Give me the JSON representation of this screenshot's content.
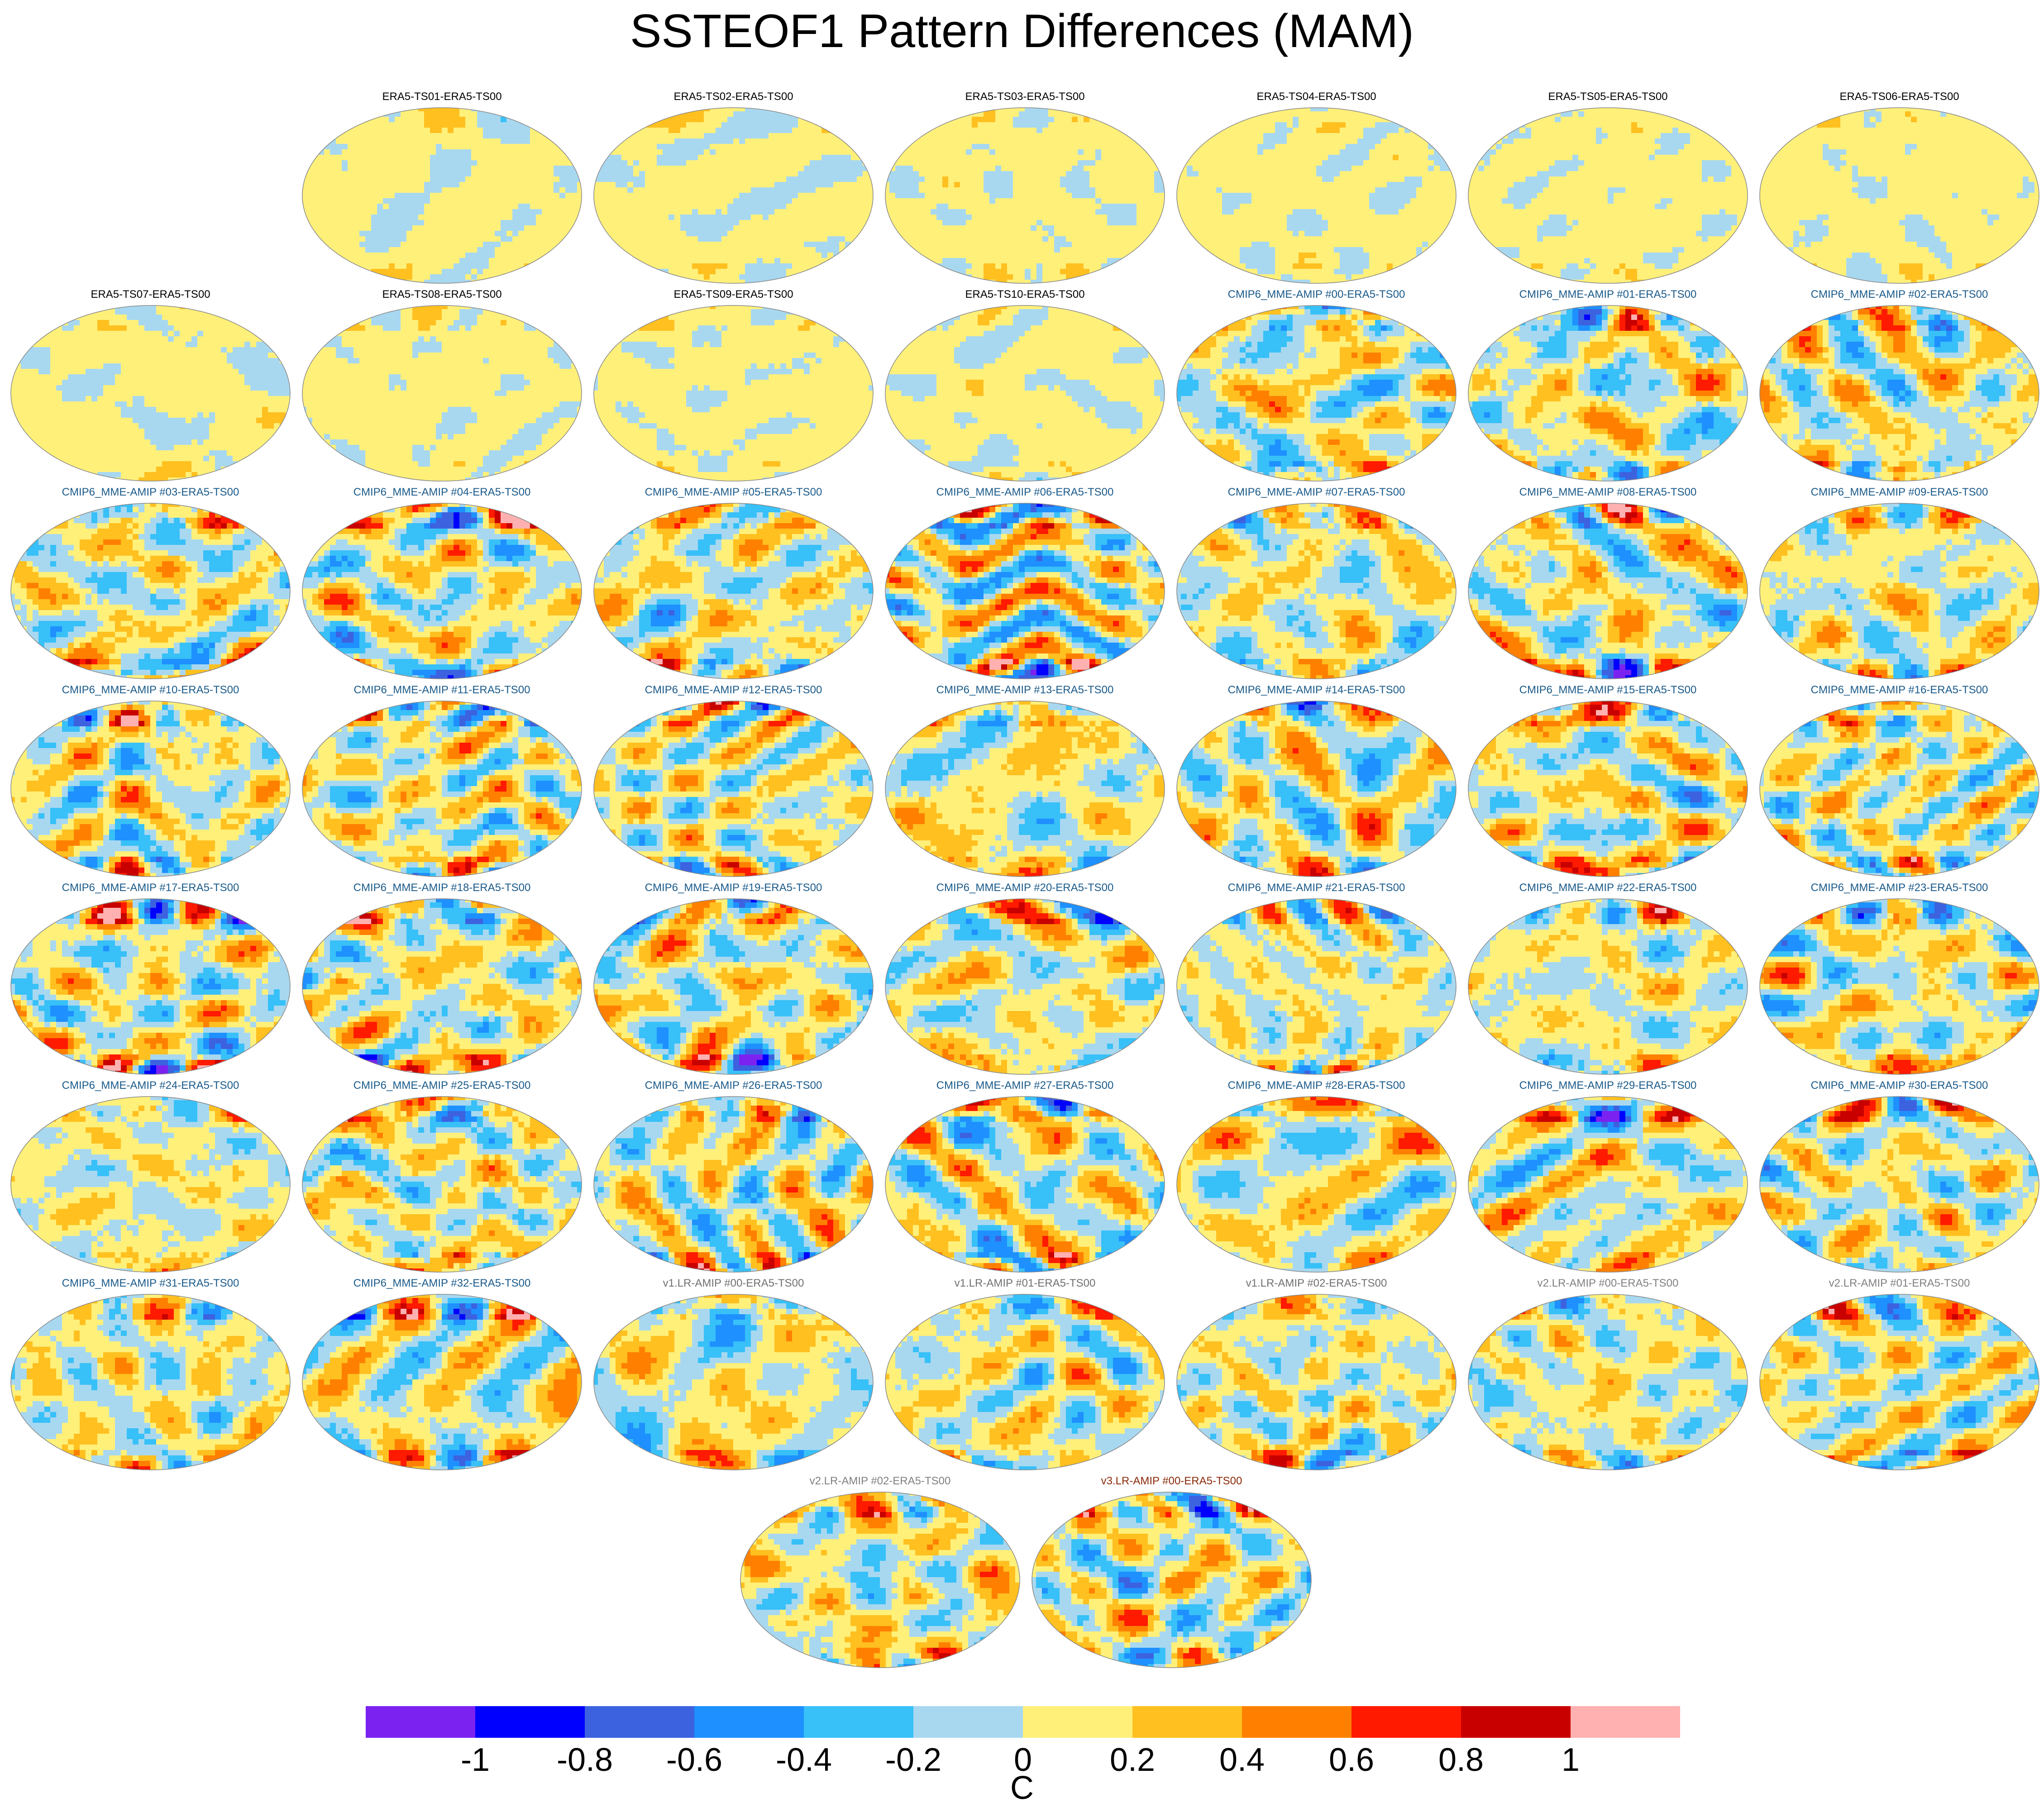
{
  "chart_data": {
    "type": "heatmap",
    "title": "SSTEOF1 Pattern Differences (MAM)",
    "colorbar": {
      "units": "C",
      "levels": [
        -1,
        -0.8,
        -0.6,
        -0.4,
        -0.2,
        0,
        0.2,
        0.4,
        0.6,
        0.8,
        1
      ],
      "tick_labels": [
        "-1",
        "-0.8",
        "-0.6",
        "-0.4",
        "-0.2",
        "0",
        "0.2",
        "0.4",
        "0.6",
        "0.8",
        "1"
      ],
      "colors": [
        "#7c22f0",
        "#0000ff",
        "#3c62e0",
        "#1e90ff",
        "#38c0f8",
        "#a8d8f0",
        "#fff07a",
        "#ffc020",
        "#ff8000",
        "#ff1a00",
        "#c80000",
        "#ffb0b0"
      ]
    },
    "panels": [
      {
        "title": "ERA5-TS01-ERA5-TS00",
        "group": "era5",
        "amplitude": 0.2
      },
      {
        "title": "ERA5-TS02-ERA5-TS00",
        "group": "era5",
        "amplitude": 0.2
      },
      {
        "title": "ERA5-TS03-ERA5-TS00",
        "group": "era5",
        "amplitude": 0.2
      },
      {
        "title": "ERA5-TS04-ERA5-TS00",
        "group": "era5",
        "amplitude": 0.2
      },
      {
        "title": "ERA5-TS05-ERA5-TS00",
        "group": "era5",
        "amplitude": 0.2
      },
      {
        "title": "ERA5-TS06-ERA5-TS00",
        "group": "era5",
        "amplitude": 0.2
      },
      {
        "title": "ERA5-TS07-ERA5-TS00",
        "group": "era5",
        "amplitude": 0.2
      },
      {
        "title": "ERA5-TS08-ERA5-TS00",
        "group": "era5",
        "amplitude": 0.2
      },
      {
        "title": "ERA5-TS09-ERA5-TS00",
        "group": "era5",
        "amplitude": 0.2
      },
      {
        "title": "ERA5-TS10-ERA5-TS00",
        "group": "era5",
        "amplitude": 0.2
      },
      {
        "title": "CMIP6_MME-AMIP  #00-ERA5-TS00",
        "group": "cmip6",
        "amplitude": 0.8
      },
      {
        "title": "CMIP6_MME-AMIP  #01-ERA5-TS00",
        "group": "cmip6",
        "amplitude": 0.8
      },
      {
        "title": "CMIP6_MME-AMIP  #02-ERA5-TS00",
        "group": "cmip6",
        "amplitude": 0.9
      },
      {
        "title": "CMIP6_MME-AMIP  #03-ERA5-TS00",
        "group": "cmip6",
        "amplitude": 0.9
      },
      {
        "title": "CMIP6_MME-AMIP  #04-ERA5-TS00",
        "group": "cmip6",
        "amplitude": 0.8
      },
      {
        "title": "CMIP6_MME-AMIP  #05-ERA5-TS00",
        "group": "cmip6",
        "amplitude": 0.8
      },
      {
        "title": "CMIP6_MME-AMIP  #06-ERA5-TS00",
        "group": "cmip6",
        "amplitude": 0.9
      },
      {
        "title": "CMIP6_MME-AMIP  #07-ERA5-TS00",
        "group": "cmip6",
        "amplitude": 0.8
      },
      {
        "title": "CMIP6_MME-AMIP  #08-ERA5-TS00",
        "group": "cmip6",
        "amplitude": 0.9
      },
      {
        "title": "CMIP6_MME-AMIP  #09-ERA5-TS00",
        "group": "cmip6",
        "amplitude": 0.8
      },
      {
        "title": "CMIP6_MME-AMIP  #10-ERA5-TS00",
        "group": "cmip6",
        "amplitude": 0.9
      },
      {
        "title": "CMIP6_MME-AMIP  #11-ERA5-TS00",
        "group": "cmip6",
        "amplitude": 0.8
      },
      {
        "title": "CMIP6_MME-AMIP  #12-ERA5-TS00",
        "group": "cmip6",
        "amplitude": 0.7
      },
      {
        "title": "CMIP6_MME-AMIP  #13-ERA5-TS00",
        "group": "cmip6",
        "amplitude": 0.8
      },
      {
        "title": "CMIP6_MME-AMIP  #14-ERA5-TS00",
        "group": "cmip6",
        "amplitude": 0.8
      },
      {
        "title": "CMIP6_MME-AMIP  #15-ERA5-TS00",
        "group": "cmip6",
        "amplitude": 0.8
      },
      {
        "title": "CMIP6_MME-AMIP  #16-ERA5-TS00",
        "group": "cmip6",
        "amplitude": 0.9
      },
      {
        "title": "CMIP6_MME-AMIP  #17-ERA5-TS00",
        "group": "cmip6",
        "amplitude": 0.9
      },
      {
        "title": "CMIP6_MME-AMIP  #18-ERA5-TS00",
        "group": "cmip6",
        "amplitude": 0.8
      },
      {
        "title": "CMIP6_MME-AMIP  #19-ERA5-TS00",
        "group": "cmip6",
        "amplitude": 0.8
      },
      {
        "title": "CMIP6_MME-AMIP  #20-ERA5-TS00",
        "group": "cmip6",
        "amplitude": 0.8
      },
      {
        "title": "CMIP6_MME-AMIP  #21-ERA5-TS00",
        "group": "cmip6",
        "amplitude": 0.8
      },
      {
        "title": "CMIP6_MME-AMIP  #22-ERA5-TS00",
        "group": "cmip6",
        "amplitude": 0.8
      },
      {
        "title": "CMIP6_MME-AMIP  #23-ERA5-TS00",
        "group": "cmip6",
        "amplitude": 0.8
      },
      {
        "title": "CMIP6_MME-AMIP  #24-ERA5-TS00",
        "group": "cmip6",
        "amplitude": 0.7
      },
      {
        "title": "CMIP6_MME-AMIP  #25-ERA5-TS00",
        "group": "cmip6",
        "amplitude": 0.9
      },
      {
        "title": "CMIP6_MME-AMIP  #26-ERA5-TS00",
        "group": "cmip6",
        "amplitude": 0.9
      },
      {
        "title": "CMIP6_MME-AMIP  #27-ERA5-TS00",
        "group": "cmip6",
        "amplitude": 0.8
      },
      {
        "title": "CMIP6_MME-AMIP  #28-ERA5-TS00",
        "group": "cmip6",
        "amplitude": 0.7
      },
      {
        "title": "CMIP6_MME-AMIP  #29-ERA5-TS00",
        "group": "cmip6",
        "amplitude": 0.8
      },
      {
        "title": "CMIP6_MME-AMIP  #30-ERA5-TS00",
        "group": "cmip6",
        "amplitude": 0.7
      },
      {
        "title": "CMIP6_MME-AMIP  #31-ERA5-TS00",
        "group": "cmip6",
        "amplitude": 0.8
      },
      {
        "title": "CMIP6_MME-AMIP  #32-ERA5-TS00",
        "group": "cmip6",
        "amplitude": 0.8
      },
      {
        "title": "v1.LR-AMIP  #00-ERA5-TS00",
        "group": "v1",
        "amplitude": 0.7
      },
      {
        "title": "v1.LR-AMIP  #01-ERA5-TS00",
        "group": "v1",
        "amplitude": 0.7
      },
      {
        "title": "v1.LR-AMIP  #02-ERA5-TS00",
        "group": "v1",
        "amplitude": 0.8
      },
      {
        "title": "v2.LR-AMIP  #00-ERA5-TS00",
        "group": "v2",
        "amplitude": 0.6
      },
      {
        "title": "v2.LR-AMIP  #01-ERA5-TS00",
        "group": "v2",
        "amplitude": 0.7
      },
      {
        "title": "v2.LR-AMIP  #02-ERA5-TS00",
        "group": "v2",
        "amplitude": 0.7
      },
      {
        "title": "v3.LR-AMIP  #00-ERA5-TS00",
        "group": "v3",
        "amplitude": 0.9
      }
    ],
    "group_title_colors": {
      "era5": "#000000",
      "cmip6": "#1a5a8a",
      "v1": "#707070",
      "v2": "#808080",
      "v3": "#8b2a0a"
    }
  }
}
